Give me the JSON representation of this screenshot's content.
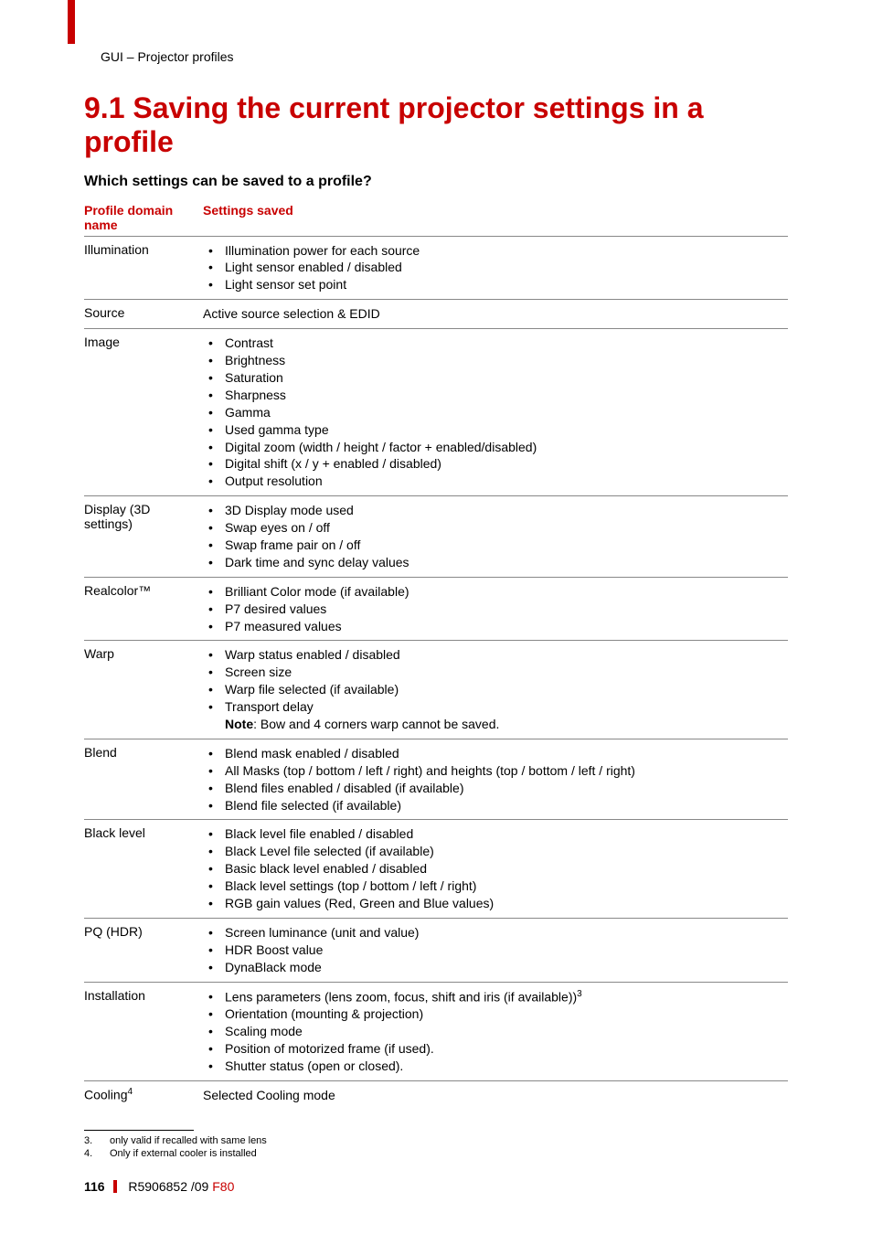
{
  "colors": {
    "accent": "#c80000",
    "text": "#000000",
    "background": "#ffffff",
    "rule": "#888888"
  },
  "header": {
    "breadcrumb": "GUI – Projector profiles"
  },
  "title": "9.1 Saving the current projector settings in a profile",
  "subheading": "Which settings can be saved to a profile?",
  "table": {
    "headers": {
      "domain": "Profile domain name",
      "settings": "Settings saved"
    },
    "rows": [
      {
        "domain": "Illumination",
        "items": [
          "Illumination power for each source",
          "Light sensor enabled / disabled",
          "Light sensor set point"
        ]
      },
      {
        "domain": "Source",
        "plain": "Active source selection & EDID"
      },
      {
        "domain": "Image",
        "items": [
          "Contrast",
          "Brightness",
          "Saturation",
          "Sharpness",
          "Gamma",
          "Used gamma type",
          "Digital zoom (width / height / factor + enabled/disabled)",
          "Digital shift (x / y + enabled / disabled)",
          "Output resolution"
        ]
      },
      {
        "domain": "Display (3D settings)",
        "items": [
          "3D Display mode used",
          "Swap eyes on / off",
          "Swap frame pair on / off",
          "Dark time and sync delay values"
        ]
      },
      {
        "domain_html": "Realcolor™",
        "items": [
          "Brilliant Color mode (if available)",
          "P7 desired values",
          "P7 measured values"
        ]
      },
      {
        "domain": "Warp",
        "items": [
          "Warp status enabled / disabled",
          "Screen size",
          "Warp file selected (if available)",
          "Transport delay"
        ],
        "note_label": "Note",
        "note_text": ": Bow and 4 corners warp cannot be saved."
      },
      {
        "domain": "Blend",
        "items": [
          "Blend mask enabled / disabled",
          "All Masks (top / bottom / left / right) and heights (top / bottom / left / right)",
          "Blend files enabled / disabled (if available)",
          "Blend file selected (if available)"
        ]
      },
      {
        "domain": "Black level",
        "items": [
          "Black level file enabled / disabled",
          "Black Level file selected (if available)",
          "Basic black level enabled / disabled",
          "Black level settings (top / bottom / left / right)",
          "RGB gain values (Red, Green and Blue values)"
        ]
      },
      {
        "domain": "PQ (HDR)",
        "items": [
          "Screen luminance (unit and value)",
          "HDR Boost value",
          "DynaBlack mode"
        ]
      },
      {
        "domain": "Installation",
        "items_html": [
          "Lens parameters (lens zoom, focus, shift and iris (if available))<sup>3</sup>",
          "Orientation (mounting & projection)",
          "Scaling mode",
          "Position of motorized frame (if used).",
          "Shutter status (open or closed)."
        ]
      },
      {
        "domain_html": "Cooling<sup>4</sup>",
        "plain": "Selected Cooling mode",
        "no_border": true
      }
    ]
  },
  "footnotes": [
    {
      "num": "3.",
      "text": "only valid if recalled with same lens"
    },
    {
      "num": "4.",
      "text": "Only if external cooler is installed"
    }
  ],
  "footer": {
    "page": "116",
    "doc_ref": "R5906852 /09",
    "model": "F80"
  }
}
